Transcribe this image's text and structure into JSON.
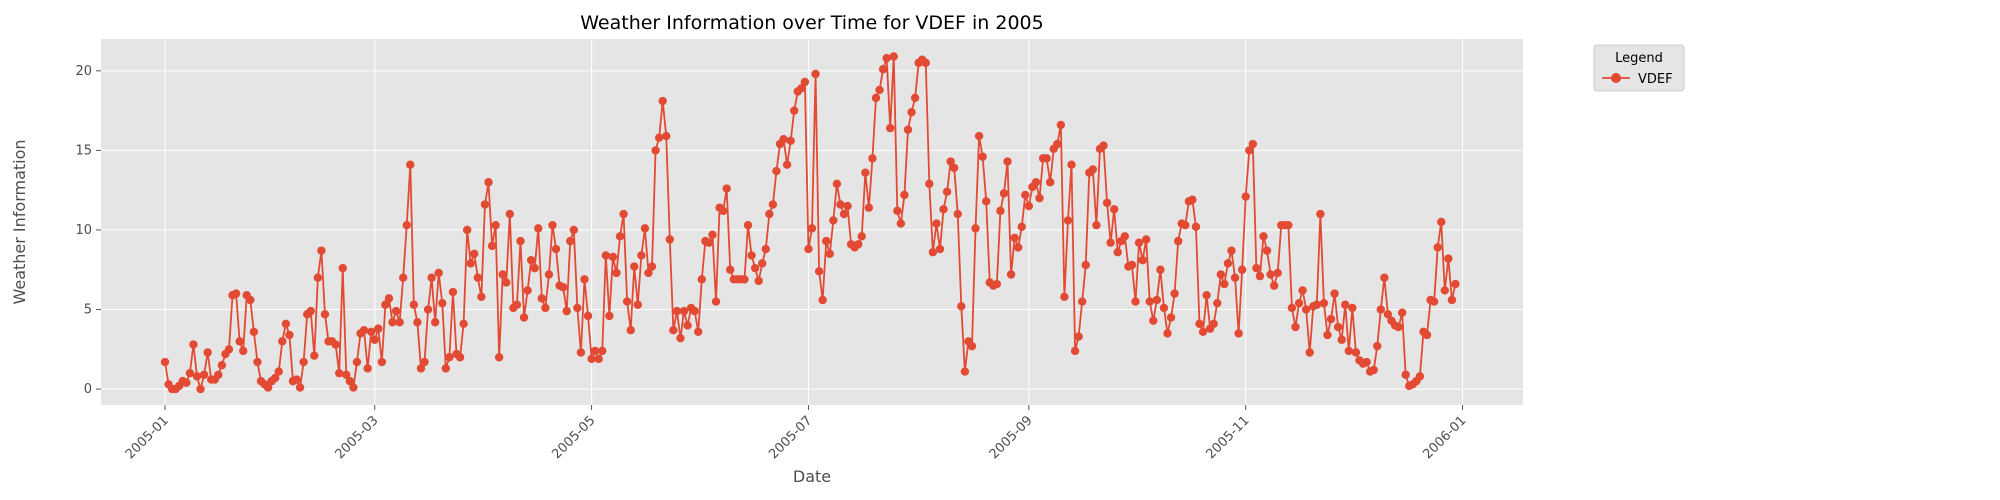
{
  "chart_data": {
    "type": "line",
    "title": "Weather Information over Time for VDEF in 2005",
    "xlabel": "Date",
    "ylabel": "Weather Information",
    "x_ticks": [
      "2005-01",
      "2005-03",
      "2005-05",
      "2005-07",
      "2005-09",
      "2005-11",
      "2006-01"
    ],
    "y_ticks": [
      0,
      5,
      10,
      15,
      20
    ],
    "xlim": [
      "2004-12-14",
      "2006-01-18"
    ],
    "ylim": [
      -1.0,
      22.0
    ],
    "grid": true,
    "legend": {
      "title": "Legend",
      "position": "outside-top-right"
    },
    "series": [
      {
        "name": "VDEF",
        "color": "#e24a33",
        "marker": "circle",
        "start_date": "2005-01-01",
        "step_days": 1,
        "values": [
          1.7,
          0.3,
          0.0,
          0.0,
          0.2,
          0.5,
          0.4,
          1.0,
          2.8,
          0.8,
          0.0,
          0.9,
          2.3,
          0.6,
          0.6,
          0.9,
          1.5,
          2.2,
          2.5,
          5.9,
          6.0,
          3.0,
          2.4,
          5.9,
          5.6,
          3.6,
          1.7,
          0.5,
          0.3,
          0.1,
          0.5,
          0.7,
          1.1,
          3.0,
          4.1,
          3.4,
          0.5,
          0.6,
          0.1,
          1.7,
          4.7,
          4.9,
          2.1,
          7.0,
          8.7,
          4.7,
          3.0,
          3.0,
          2.8,
          1.0,
          7.6,
          0.9,
          0.5,
          0.1,
          1.7,
          3.5,
          3.7,
          1.3,
          3.6,
          3.1,
          3.8,
          1.7,
          5.3,
          5.7,
          4.2,
          4.9,
          4.2,
          7.0,
          10.3,
          14.1,
          5.3,
          4.2,
          1.3,
          1.7,
          5.0,
          7.0,
          4.2,
          7.3,
          5.4,
          1.3,
          2.0,
          6.1,
          2.2,
          2.0,
          4.1,
          10.0,
          7.9,
          8.5,
          7.0,
          5.8,
          11.6,
          13.0,
          9.0,
          10.3,
          2.0,
          7.2,
          6.7,
          11.0,
          5.1,
          5.3,
          9.3,
          4.5,
          6.2,
          8.1,
          7.6,
          10.1,
          5.7,
          5.1,
          7.2,
          10.3,
          8.8,
          6.5,
          6.4,
          4.9,
          9.3,
          10.0,
          5.1,
          2.3,
          6.9,
          4.6,
          1.9,
          2.4,
          1.9,
          2.4,
          8.4,
          4.6,
          8.3,
          7.3,
          9.6,
          11.0,
          5.5,
          3.7,
          7.7,
          5.3,
          8.4,
          10.1,
          7.3,
          7.7,
          15.0,
          15.8,
          18.1,
          15.9,
          9.4,
          3.7,
          4.9,
          3.2,
          4.9,
          4.0,
          5.1,
          4.9,
          3.6,
          6.9,
          9.3,
          9.2,
          9.7,
          5.5,
          11.4,
          11.2,
          12.6,
          7.5,
          6.9,
          6.9,
          6.9,
          6.9,
          10.3,
          8.4,
          7.6,
          6.8,
          7.9,
          8.8,
          11.0,
          11.6,
          13.7,
          15.4,
          15.7,
          14.1,
          15.6,
          17.5,
          18.7,
          18.9,
          19.3,
          8.8,
          10.1,
          19.8,
          7.4,
          5.6,
          9.3,
          8.5,
          10.6,
          12.9,
          11.6,
          11.0,
          11.5,
          9.1,
          8.9,
          9.1,
          9.6,
          13.6,
          11.4,
          14.5,
          18.3,
          18.8,
          20.1,
          20.8,
          16.4,
          20.9,
          11.2,
          10.4,
          12.2,
          16.3,
          17.4,
          18.3,
          20.5,
          20.7,
          20.5,
          12.9,
          8.6,
          10.4,
          8.8,
          11.3,
          12.4,
          14.3,
          13.9,
          11.0,
          5.2,
          1.1,
          3.0,
          2.7,
          10.1,
          15.9,
          14.6,
          11.8,
          6.7,
          6.5,
          6.6,
          11.2,
          12.3,
          14.3,
          7.2,
          9.5,
          8.9,
          10.2,
          12.2,
          11.5,
          12.7,
          13.0,
          12.0,
          14.5,
          14.5,
          13.0,
          15.1,
          15.4,
          16.6,
          5.8,
          10.6,
          14.1,
          2.4,
          3.3,
          5.5,
          7.8,
          13.6,
          13.8,
          10.3,
          15.1,
          15.3,
          11.7,
          9.2,
          11.3,
          8.6,
          9.3,
          9.6,
          7.7,
          7.8,
          5.5,
          9.2,
          8.1,
          9.4,
          5.5,
          4.3,
          5.6,
          7.5,
          5.1,
          3.5,
          4.5,
          6.0,
          9.3,
          10.4,
          10.3,
          11.8,
          11.9,
          10.2,
          4.1,
          3.6,
          5.9,
          3.8,
          4.1,
          5.4,
          7.2,
          6.6,
          7.9,
          8.7,
          7.0,
          3.5,
          7.5,
          12.1,
          15.0,
          15.4,
          7.6,
          7.1,
          9.6,
          8.7,
          7.2,
          6.5,
          7.3,
          10.3,
          10.3,
          10.3,
          5.1,
          3.9,
          5.4,
          6.2,
          5.0,
          2.3,
          5.2,
          5.3,
          11.0,
          5.4,
          3.4,
          4.4,
          6.0,
          3.9,
          3.1,
          5.3,
          2.4,
          5.1,
          2.3,
          1.8,
          1.6,
          1.7,
          1.1,
          1.2,
          2.7,
          5.0,
          7.0,
          4.7,
          4.3,
          4.0,
          3.9,
          4.8,
          0.9,
          0.2,
          0.3,
          0.5,
          0.8,
          3.6,
          3.4,
          5.6,
          5.5,
          8.9,
          10.5,
          6.2,
          8.2,
          5.6,
          6.6
        ]
      }
    ]
  }
}
